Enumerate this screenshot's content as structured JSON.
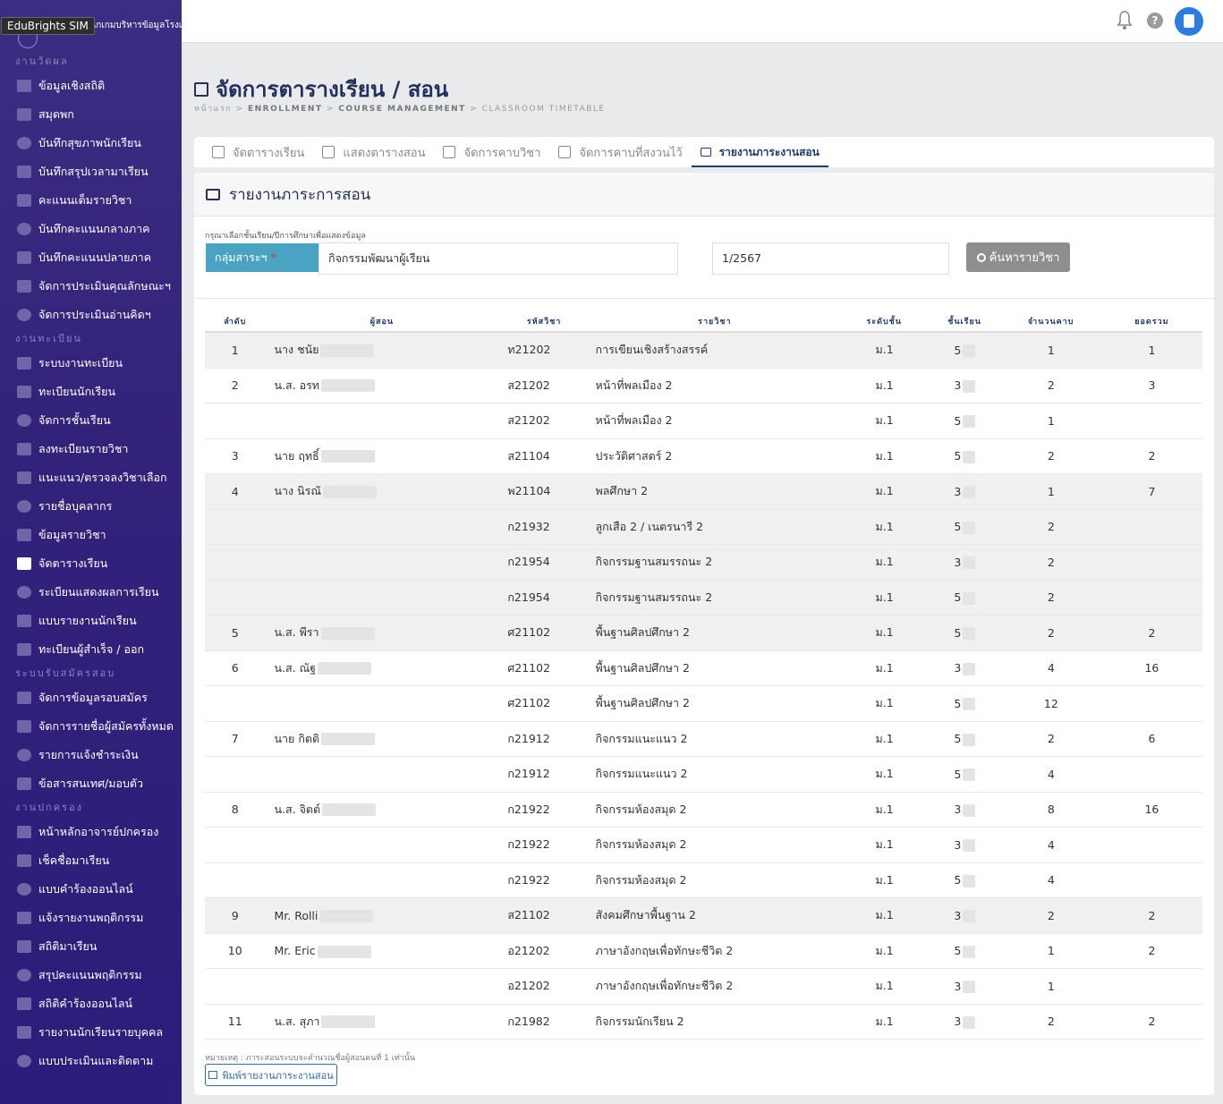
{
  "brand": {
    "tooltip": "EduBrights SIM",
    "subtitle": "แนกเกมบริหารข้อมูลโรงเรียน"
  },
  "sidebar": {
    "sections": [
      {
        "title": "งานวัดผล",
        "items": [
          "ข้อมูลเชิงสถิติ",
          "สมุดพก",
          "บันทึกสุขภาพนักเรียน",
          "บันทึกสรุปเวลามาเรียน",
          "คะแนนเต็มรายวิชา",
          "บันทึกคะแนนกลางภาค",
          "บันทึกคะแนนปลายภาค",
          "จัดการประเมินคุณลักษณะฯ",
          "จัดการประเมินอ่านคิดฯ"
        ]
      },
      {
        "title": "งานทะเบียน",
        "items": [
          "ระบบงานทะเบียน",
          "ทะเบียนนักเรียน",
          "จัดการชั้นเรียน",
          "ลงทะเบียนรายวิชา",
          "แนะแนว/ตรวจลงวิชาเลือก",
          "รายชื่อบุคลากร",
          "ข้อมูลรายวิชา",
          "จัดตารางเรียน",
          "ระเบียนแสดงผลการเรียน",
          "แบบรายงานนักเรียน",
          "ทะเบียนผู้สำเร็จ / ออก"
        ]
      },
      {
        "title": "ระบบรับสมัครสอบ",
        "items": [
          "จัดการข้อมูลรอบสมัคร",
          "จัดการรายชื่อผู้สมัครทั้งหมด",
          "รายการแจ้งชำระเงิน",
          "ข้อสารสนเทศ/มอบตัว"
        ]
      },
      {
        "title": "งานปกครอง",
        "items": [
          "หน้าหลักอาจารย์ปกครอง",
          "เช็คชื่อมาเรียน",
          "แบบคำร้องออนไลน์",
          "แจ้งรายงานพฤติกรรม",
          "สถิติมาเรียน",
          "สรุปคะแนนพฤติกรรม",
          "สถิติคำร้องออนไลน์",
          "รายงานนักเรียนรายบุคคล",
          "แบบประเมินและติดตาม"
        ]
      }
    ],
    "active_item": "จัดตารางเรียน"
  },
  "page": {
    "title": "จัดการตารางเรียน / สอน",
    "breadcrumb": [
      "หน้าแรก",
      "ENROLLMENT",
      "COURSE MANAGEMENT",
      "CLASSROOM TIMETABLE"
    ]
  },
  "tabs": [
    {
      "label": "จัดตารางเรียน",
      "active": false
    },
    {
      "label": "แสดงตารางสอน",
      "active": false
    },
    {
      "label": "จัดการคาบวิชา",
      "active": false
    },
    {
      "label": "จัดการคาบที่สงวนไว้",
      "active": false
    },
    {
      "label": "รายงานภาระงานสอน",
      "active": true
    }
  ],
  "card": {
    "title": "รายงานภาระการสอน",
    "hint": "กรุณาเลือกชั้นเรียน/ปีการศึกษาเพื่อแสดงข้อมูล",
    "filter_label": "กลุ่มสาระฯ",
    "filter_required": "*",
    "group_value": "กิจกรรมพัฒนาผู้เรียน",
    "term_value": "1/2567",
    "search_label": "ค้นหารายวิชา",
    "note": "หมายเหตุ : ภาระสอนระบบจะคำนวณชื่อผู้สอนคนที่ 1 เท่านั้น",
    "print_label": "พิมพ์รายงานภาระงานสอน"
  },
  "table": {
    "headers": [
      "ลำดับ",
      "ผู้สอน",
      "รหัสวิชา",
      "รายวิชา",
      "ระดับชั้น",
      "ชั้นเรียน",
      "จำนวนคาบ",
      "ยอดรวม"
    ],
    "rows": [
      {
        "no": "1",
        "teacher": "นาง ชนัย",
        "code": "ท21202",
        "name": "การเขียนเชิงสร้างสรรค์",
        "level": "ม.1",
        "room": "5",
        "periods": "1",
        "total": "1",
        "shade": true
      },
      {
        "no": "2",
        "teacher": "น.ส. อรท",
        "code": "ส21202",
        "name": "หน้าที่พลเมือง 2",
        "level": "ม.1",
        "room": "3",
        "periods": "2",
        "total": "3",
        "shade": false
      },
      {
        "no": "",
        "teacher": "",
        "code": "ส21202",
        "name": "หน้าที่พลเมือง 2",
        "level": "ม.1",
        "room": "5",
        "periods": "1",
        "total": "",
        "shade": false
      },
      {
        "no": "3",
        "teacher": "นาย ฤทธิ์",
        "code": "ส21104",
        "name": "ประวัติศาสตร์ 2",
        "level": "ม.1",
        "room": "5",
        "periods": "2",
        "total": "2",
        "shade": false
      },
      {
        "no": "4",
        "teacher": "นาง นิรณั",
        "code": "พ21104",
        "name": "พลศึกษา 2",
        "level": "ม.1",
        "room": "3",
        "periods": "1",
        "total": "7",
        "shade": true
      },
      {
        "no": "",
        "teacher": "",
        "code": "ก21932",
        "name": "ลูกเสือ 2 / เนตรนารี 2",
        "level": "ม.1",
        "room": "5",
        "periods": "2",
        "total": "",
        "shade": true
      },
      {
        "no": "",
        "teacher": "",
        "code": "ก21954",
        "name": "กิจกรรมฐานสมรรถนะ 2",
        "level": "ม.1",
        "room": "3",
        "periods": "2",
        "total": "",
        "shade": true
      },
      {
        "no": "",
        "teacher": "",
        "code": "ก21954",
        "name": "กิจกรรมฐานสมรรถนะ 2",
        "level": "ม.1",
        "room": "5",
        "periods": "2",
        "total": "",
        "shade": true
      },
      {
        "no": "5",
        "teacher": "น.ส. พีรา",
        "code": "ศ21102",
        "name": "พื้นฐานศิลปศึกษา 2",
        "level": "ม.1",
        "room": "5",
        "periods": "2",
        "total": "2",
        "shade": true
      },
      {
        "no": "6",
        "teacher": "น.ส. ณัฐ",
        "code": "ศ21102",
        "name": "พื้นฐานศิลปศึกษา 2",
        "level": "ม.1",
        "room": "3",
        "periods": "4",
        "total": "16",
        "shade": false
      },
      {
        "no": "",
        "teacher": "",
        "code": "ศ21102",
        "name": "พื้นฐานศิลปศึกษา 2",
        "level": "ม.1",
        "room": "5",
        "periods": "12",
        "total": "",
        "shade": false
      },
      {
        "no": "7",
        "teacher": "นาย กิตติ",
        "code": "ก21912",
        "name": "กิจกรรมแนะแนว 2",
        "level": "ม.1",
        "room": "5",
        "periods": "2",
        "total": "6",
        "shade": false
      },
      {
        "no": "",
        "teacher": "",
        "code": "ก21912",
        "name": "กิจกรรมแนะแนว 2",
        "level": "ม.1",
        "room": "5",
        "periods": "4",
        "total": "",
        "shade": false
      },
      {
        "no": "8",
        "teacher": "น.ส. จิตต์",
        "code": "ก21922",
        "name": "กิจกรรมห้องสมุด 2",
        "level": "ม.1",
        "room": "3",
        "periods": "8",
        "total": "16",
        "shade": false
      },
      {
        "no": "",
        "teacher": "",
        "code": "ก21922",
        "name": "กิจกรรมห้องสมุด 2",
        "level": "ม.1",
        "room": "3",
        "periods": "4",
        "total": "",
        "shade": false
      },
      {
        "no": "",
        "teacher": "",
        "code": "ก21922",
        "name": "กิจกรรมห้องสมุด 2",
        "level": "ม.1",
        "room": "5",
        "periods": "4",
        "total": "",
        "shade": false
      },
      {
        "no": "9",
        "teacher": "Mr. Rolli",
        "code": "ส21102",
        "name": "สังคมศึกษาพื้นฐาน 2",
        "level": "ม.1",
        "room": "3",
        "periods": "2",
        "total": "2",
        "shade": true
      },
      {
        "no": "10",
        "teacher": "Mr. Eric",
        "code": "อ21202",
        "name": "ภาษาอังกฤษเพื่อทักษะชีวิต 2",
        "level": "ม.1",
        "room": "5",
        "periods": "1",
        "total": "2",
        "shade": false
      },
      {
        "no": "",
        "teacher": "",
        "code": "อ21202",
        "name": "ภาษาอังกฤษเพื่อทักษะชีวิต 2",
        "level": "ม.1",
        "room": "3",
        "periods": "1",
        "total": "",
        "shade": false
      },
      {
        "no": "11",
        "teacher": "น.ส. สุภา",
        "code": "ก21982",
        "name": "กิจกรรมนักเรียน 2",
        "level": "ม.1",
        "room": "3",
        "periods": "2",
        "total": "2",
        "shade": false
      }
    ]
  }
}
